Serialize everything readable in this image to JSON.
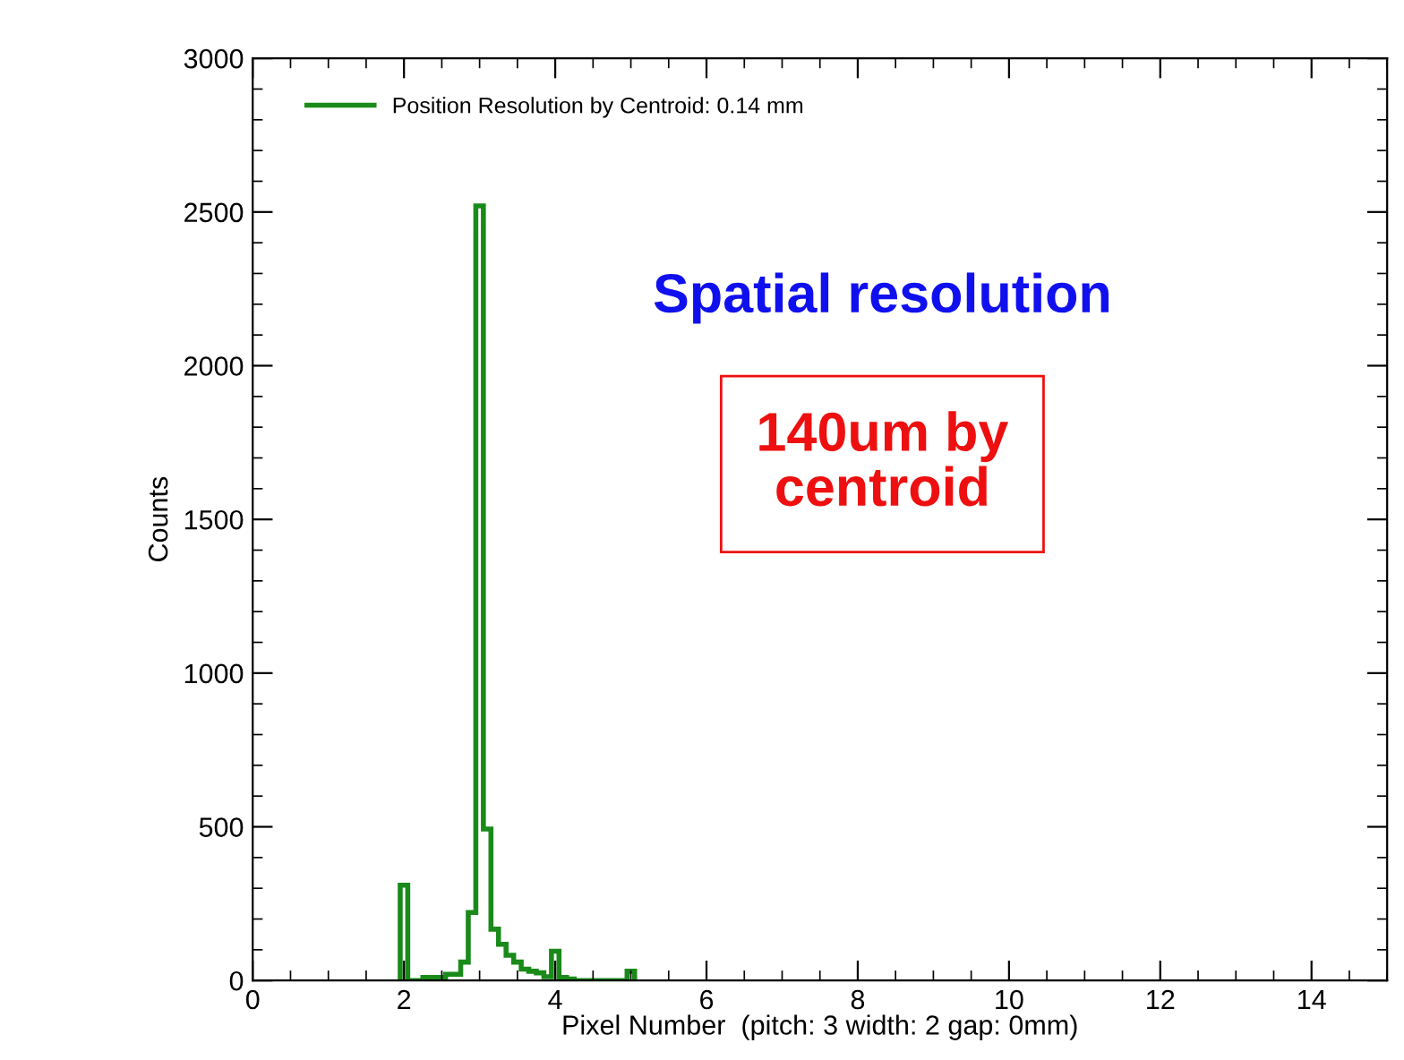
{
  "chart_data": {
    "type": "histogram",
    "xlabel": "Pixel Number  (pitch: 3 width: 2 gap: 0mm)",
    "ylabel": "Counts",
    "bins": [
      1.95,
      2.05,
      2.15,
      2.25,
      2.35,
      2.45,
      2.55,
      2.65,
      2.75,
      2.85,
      2.95,
      3.05,
      3.15,
      3.25,
      3.35,
      3.45,
      3.55,
      3.65,
      3.75,
      3.85,
      3.95,
      4.05,
      4.15,
      4.25,
      4.35,
      4.45,
      4.55,
      4.65,
      4.75,
      4.85,
      4.95,
      5.05
    ],
    "series": [
      {
        "name": "Position Resolution by Centroid: 0.14 mm",
        "color": "#1a8a1a",
        "values": [
          310,
          0,
          0,
          10,
          10,
          10,
          20,
          20,
          60,
          221,
          2520,
          493,
          167,
          118,
          82,
          60,
          37,
          30,
          25,
          12,
          95,
          10,
          5,
          0,
          0,
          0,
          0,
          0,
          0,
          0,
          30
        ]
      }
    ],
    "xlim": [
      0,
      15
    ],
    "xticks": [
      0,
      2,
      4,
      6,
      8,
      10,
      12,
      14
    ],
    "ylim": [
      0,
      3000
    ],
    "yticks": [
      0,
      500,
      1000,
      1500,
      2000,
      2500,
      3000
    ],
    "legend": "top left",
    "grid": false,
    "annotations": [
      "Spatial resolution",
      "140um by centroid"
    ]
  }
}
